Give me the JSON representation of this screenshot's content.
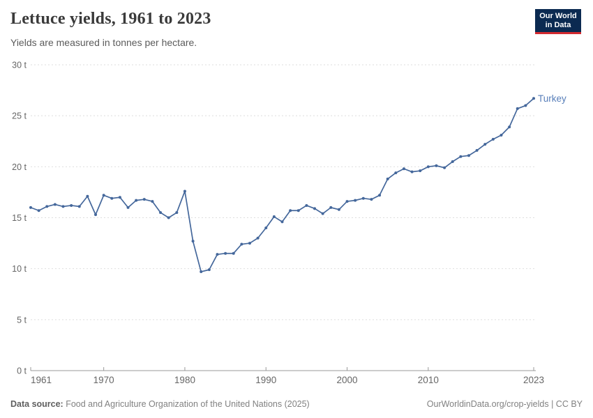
{
  "header": {
    "title": "Lettuce yields, 1961 to 2023",
    "subtitle": "Yields are measured in tonnes per hectare."
  },
  "logo": {
    "line1": "Our World",
    "line2": "in Data",
    "bg_color": "#0b2a51",
    "stripe_color": "#d32a30"
  },
  "chart_data": {
    "type": "line",
    "title": "Lettuce yields, 1961 to 2023",
    "unit": "t",
    "ylabel": "tonnes per hectare",
    "ylim": [
      0,
      30
    ],
    "yticks": [
      0,
      5,
      10,
      15,
      20,
      25,
      30
    ],
    "ytick_label_suffix": " t",
    "xlim": [
      1961,
      2023
    ],
    "xticks": [
      1961,
      1970,
      1980,
      1990,
      2000,
      2010,
      2023
    ],
    "grid": "horizontal-dashed",
    "legend_position": "end-of-line",
    "axis_color": "#999999",
    "grid_color": "#dedede",
    "tick_label_color": "#666666",
    "series": [
      {
        "name": "Turkey",
        "color": "#44679b",
        "label_color": "#577eb9",
        "x": [
          1961,
          1962,
          1963,
          1964,
          1965,
          1966,
          1967,
          1968,
          1969,
          1970,
          1971,
          1972,
          1973,
          1974,
          1975,
          1976,
          1977,
          1978,
          1979,
          1980,
          1981,
          1982,
          1983,
          1984,
          1985,
          1986,
          1987,
          1988,
          1989,
          1990,
          1991,
          1992,
          1993,
          1994,
          1995,
          1996,
          1997,
          1998,
          1999,
          2000,
          2001,
          2002,
          2003,
          2004,
          2005,
          2006,
          2007,
          2008,
          2009,
          2010,
          2011,
          2012,
          2013,
          2014,
          2015,
          2016,
          2017,
          2018,
          2019,
          2020,
          2021,
          2022,
          2023
        ],
        "values": [
          16.0,
          15.7,
          16.1,
          16.3,
          16.1,
          16.2,
          16.1,
          17.1,
          15.3,
          17.2,
          16.9,
          17.0,
          16.0,
          16.7,
          16.8,
          16.6,
          15.5,
          15.0,
          15.5,
          17.6,
          12.7,
          9.7,
          9.9,
          11.4,
          11.5,
          11.5,
          12.4,
          12.5,
          13.0,
          14.0,
          15.1,
          14.6,
          15.7,
          15.7,
          16.2,
          15.9,
          15.4,
          16.0,
          15.8,
          16.6,
          16.7,
          16.9,
          16.8,
          17.2,
          18.8,
          19.4,
          19.8,
          19.5,
          19.6,
          20.0,
          20.1,
          19.9,
          20.5,
          21.0,
          21.1,
          21.6,
          22.2,
          22.7,
          23.1,
          23.9,
          25.7,
          26.0,
          26.7
        ]
      }
    ]
  },
  "footer": {
    "source_label": "Data source:",
    "source_text": " Food and Agriculture Organization of the United Nations (2025)",
    "right_text": "OurWorldinData.org/crop-yields | CC BY"
  }
}
